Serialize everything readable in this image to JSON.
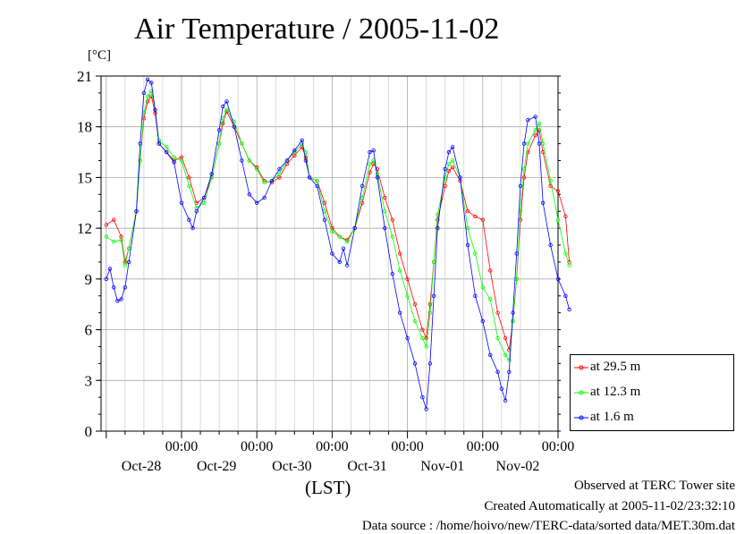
{
  "chart_data": {
    "type": "line",
    "title": "Air Temperature / 2005-11-02",
    "ylabel": "[°C]",
    "xlabel": "(LST)",
    "ylim": [
      0,
      21
    ],
    "yticks": [
      0,
      3,
      6,
      9,
      12,
      15,
      18,
      21
    ],
    "xlim": [
      0,
      6
    ],
    "xticks": [
      {
        "x": 1,
        "time": "00:00",
        "date": "Oct-28"
      },
      {
        "x": 2,
        "time": "00:00",
        "date": "Oct-29"
      },
      {
        "x": 3,
        "time": "00:00",
        "date": "Oct-30"
      },
      {
        "x": 4,
        "time": "00:00",
        "date": "Oct-31"
      },
      {
        "x": 5,
        "time": "00:00",
        "date": "Nov-01"
      },
      {
        "x": 6,
        "time": "00:00",
        "date": "Nov-02"
      }
    ],
    "grid": true,
    "legend_position": "bottom-right outside",
    "series": [
      {
        "name": "at 29.5 m",
        "color": "#ff0000",
        "points": [
          [
            0,
            12.2
          ],
          [
            0.1,
            12.5
          ],
          [
            0.2,
            11.5
          ],
          [
            0.25,
            10.0
          ],
          [
            0.3,
            10.8
          ],
          [
            0.4,
            13.0
          ],
          [
            0.45,
            16.0
          ],
          [
            0.5,
            18.5
          ],
          [
            0.55,
            19.5
          ],
          [
            0.6,
            19.8
          ],
          [
            0.65,
            18.8
          ],
          [
            0.7,
            17.0
          ],
          [
            0.8,
            16.5
          ],
          [
            0.9,
            16.0
          ],
          [
            1.0,
            16.2
          ],
          [
            1.1,
            15.0
          ],
          [
            1.2,
            13.5
          ],
          [
            1.3,
            13.8
          ],
          [
            1.4,
            15.0
          ],
          [
            1.5,
            17.0
          ],
          [
            1.55,
            18.2
          ],
          [
            1.6,
            18.9
          ],
          [
            1.7,
            18.0
          ],
          [
            1.8,
            17.0
          ],
          [
            1.9,
            16.0
          ],
          [
            2.0,
            15.6
          ],
          [
            2.1,
            14.8
          ],
          [
            2.2,
            14.7
          ],
          [
            2.3,
            15.0
          ],
          [
            2.4,
            15.8
          ],
          [
            2.5,
            16.3
          ],
          [
            2.6,
            16.8
          ],
          [
            2.65,
            16.2
          ],
          [
            2.7,
            15.0
          ],
          [
            2.8,
            14.8
          ],
          [
            2.9,
            13.5
          ],
          [
            3.0,
            12.0
          ],
          [
            3.1,
            11.5
          ],
          [
            3.2,
            11.3
          ],
          [
            3.3,
            12.0
          ],
          [
            3.4,
            13.5
          ],
          [
            3.5,
            15.3
          ],
          [
            3.55,
            15.8
          ],
          [
            3.6,
            15.5
          ],
          [
            3.7,
            13.8
          ],
          [
            3.8,
            12.5
          ],
          [
            3.9,
            10.5
          ],
          [
            4.0,
            9.0
          ],
          [
            4.1,
            7.5
          ],
          [
            4.2,
            6.0
          ],
          [
            4.25,
            5.5
          ],
          [
            4.3,
            7.5
          ],
          [
            4.35,
            10.0
          ],
          [
            4.4,
            12.5
          ],
          [
            4.5,
            14.5
          ],
          [
            4.55,
            15.4
          ],
          [
            4.6,
            15.6
          ],
          [
            4.7,
            14.8
          ],
          [
            4.8,
            13.0
          ],
          [
            4.9,
            12.7
          ],
          [
            5.0,
            12.5
          ],
          [
            5.1,
            9.5
          ],
          [
            5.2,
            7.0
          ],
          [
            5.3,
            5.5
          ],
          [
            5.35,
            4.8
          ],
          [
            5.4,
            6.5
          ],
          [
            5.45,
            9.0
          ],
          [
            5.5,
            12.5
          ],
          [
            5.55,
            15.0
          ],
          [
            5.6,
            16.5
          ],
          [
            5.7,
            17.5
          ],
          [
            5.75,
            17.8
          ],
          [
            5.8,
            16.5
          ],
          [
            5.9,
            14.5
          ],
          [
            6.0,
            14.2
          ],
          [
            6.1,
            12.7
          ],
          [
            6.15,
            10.0
          ]
        ]
      },
      {
        "name": "at 12.3 m",
        "color": "#00ff00",
        "points": [
          [
            0,
            11.5
          ],
          [
            0.1,
            11.2
          ],
          [
            0.2,
            11.3
          ],
          [
            0.25,
            9.8
          ],
          [
            0.3,
            10.8
          ],
          [
            0.4,
            13.0
          ],
          [
            0.45,
            16.0
          ],
          [
            0.5,
            18.8
          ],
          [
            0.55,
            19.8
          ],
          [
            0.6,
            20.1
          ],
          [
            0.65,
            19.0
          ],
          [
            0.7,
            17.2
          ],
          [
            0.8,
            16.8
          ],
          [
            0.9,
            16.2
          ],
          [
            1.0,
            16.0
          ],
          [
            1.1,
            14.5
          ],
          [
            1.2,
            13.2
          ],
          [
            1.3,
            13.5
          ],
          [
            1.4,
            15.0
          ],
          [
            1.5,
            17.0
          ],
          [
            1.55,
            18.5
          ],
          [
            1.6,
            19.0
          ],
          [
            1.7,
            18.3
          ],
          [
            1.8,
            17.0
          ],
          [
            1.9,
            16.0
          ],
          [
            2.0,
            15.5
          ],
          [
            2.1,
            14.7
          ],
          [
            2.2,
            14.8
          ],
          [
            2.3,
            15.2
          ],
          [
            2.4,
            16.0
          ],
          [
            2.5,
            16.5
          ],
          [
            2.6,
            17.0
          ],
          [
            2.65,
            16.5
          ],
          [
            2.7,
            15.0
          ],
          [
            2.8,
            14.8
          ],
          [
            2.9,
            13.0
          ],
          [
            3.0,
            11.8
          ],
          [
            3.1,
            11.5
          ],
          [
            3.2,
            11.2
          ],
          [
            3.3,
            12.0
          ],
          [
            3.4,
            13.8
          ],
          [
            3.5,
            15.8
          ],
          [
            3.55,
            16.0
          ],
          [
            3.6,
            15.2
          ],
          [
            3.7,
            13.0
          ],
          [
            3.8,
            11.5
          ],
          [
            3.9,
            9.5
          ],
          [
            4.0,
            8.0
          ],
          [
            4.1,
            6.5
          ],
          [
            4.2,
            5.5
          ],
          [
            4.25,
            5.0
          ],
          [
            4.3,
            7.0
          ],
          [
            4.35,
            10.0
          ],
          [
            4.4,
            12.8
          ],
          [
            4.5,
            15.0
          ],
          [
            4.55,
            15.8
          ],
          [
            4.6,
            16.0
          ],
          [
            4.7,
            15.0
          ],
          [
            4.8,
            12.0
          ],
          [
            4.9,
            10.5
          ],
          [
            5.0,
            8.5
          ],
          [
            5.1,
            7.8
          ],
          [
            5.2,
            5.5
          ],
          [
            5.3,
            4.5
          ],
          [
            5.35,
            4.2
          ],
          [
            5.4,
            6.5
          ],
          [
            5.45,
            9.0
          ],
          [
            5.5,
            13.0
          ],
          [
            5.55,
            15.5
          ],
          [
            5.6,
            17.0
          ],
          [
            5.7,
            17.8
          ],
          [
            5.75,
            18.2
          ],
          [
            5.8,
            17.0
          ],
          [
            5.9,
            14.8
          ],
          [
            6.0,
            12.5
          ],
          [
            6.1,
            10.5
          ],
          [
            6.15,
            9.8
          ]
        ]
      },
      {
        "name": "at 1.6 m",
        "color": "#0000ff",
        "points": [
          [
            0,
            9.0
          ],
          [
            0.05,
            9.6
          ],
          [
            0.1,
            8.5
          ],
          [
            0.15,
            7.7
          ],
          [
            0.2,
            7.8
          ],
          [
            0.25,
            8.5
          ],
          [
            0.3,
            10.0
          ],
          [
            0.4,
            13.0
          ],
          [
            0.45,
            17.0
          ],
          [
            0.5,
            20.0
          ],
          [
            0.55,
            20.8
          ],
          [
            0.6,
            20.6
          ],
          [
            0.65,
            19.0
          ],
          [
            0.7,
            17.0
          ],
          [
            0.8,
            16.5
          ],
          [
            0.9,
            15.9
          ],
          [
            1.0,
            13.5
          ],
          [
            1.1,
            12.5
          ],
          [
            1.15,
            12.0
          ],
          [
            1.2,
            13.0
          ],
          [
            1.3,
            13.8
          ],
          [
            1.4,
            15.2
          ],
          [
            1.5,
            17.8
          ],
          [
            1.55,
            19.2
          ],
          [
            1.6,
            19.5
          ],
          [
            1.7,
            18.0
          ],
          [
            1.8,
            16.0
          ],
          [
            1.9,
            14.0
          ],
          [
            2.0,
            13.5
          ],
          [
            2.1,
            13.8
          ],
          [
            2.2,
            14.8
          ],
          [
            2.3,
            15.5
          ],
          [
            2.4,
            16.0
          ],
          [
            2.5,
            16.6
          ],
          [
            2.6,
            17.2
          ],
          [
            2.65,
            16.0
          ],
          [
            2.7,
            15.0
          ],
          [
            2.8,
            14.5
          ],
          [
            2.9,
            12.5
          ],
          [
            3.0,
            10.5
          ],
          [
            3.1,
            10.0
          ],
          [
            3.15,
            10.8
          ],
          [
            3.2,
            9.8
          ],
          [
            3.3,
            12.0
          ],
          [
            3.4,
            14.5
          ],
          [
            3.5,
            16.5
          ],
          [
            3.55,
            16.6
          ],
          [
            3.6,
            15.0
          ],
          [
            3.7,
            12.0
          ],
          [
            3.8,
            9.3
          ],
          [
            3.9,
            7.0
          ],
          [
            4.0,
            5.5
          ],
          [
            4.1,
            4.0
          ],
          [
            4.2,
            2.0
          ],
          [
            4.25,
            1.3
          ],
          [
            4.3,
            4.0
          ],
          [
            4.35,
            8.0
          ],
          [
            4.4,
            12.0
          ],
          [
            4.5,
            15.5
          ],
          [
            4.55,
            16.5
          ],
          [
            4.6,
            16.8
          ],
          [
            4.7,
            15.0
          ],
          [
            4.8,
            11.0
          ],
          [
            4.9,
            8.0
          ],
          [
            5.0,
            6.5
          ],
          [
            5.1,
            4.5
          ],
          [
            5.2,
            3.5
          ],
          [
            5.25,
            2.5
          ],
          [
            5.3,
            1.8
          ],
          [
            5.35,
            3.5
          ],
          [
            5.4,
            7.0
          ],
          [
            5.45,
            10.5
          ],
          [
            5.5,
            14.5
          ],
          [
            5.55,
            17.0
          ],
          [
            5.6,
            18.4
          ],
          [
            5.7,
            18.6
          ],
          [
            5.75,
            17.0
          ],
          [
            5.8,
            13.5
          ],
          [
            5.9,
            11.0
          ],
          [
            6.0,
            9.0
          ],
          [
            6.1,
            8.0
          ],
          [
            6.15,
            7.2
          ]
        ]
      }
    ]
  },
  "footer": {
    "observed": "Observed at TERC Tower site",
    "created": "Created Automatically at 2005-11-02/23:32:10",
    "source": "Data source : /home/hoivo/new/TERC-data/sorted  data/MET.30m.dat"
  }
}
